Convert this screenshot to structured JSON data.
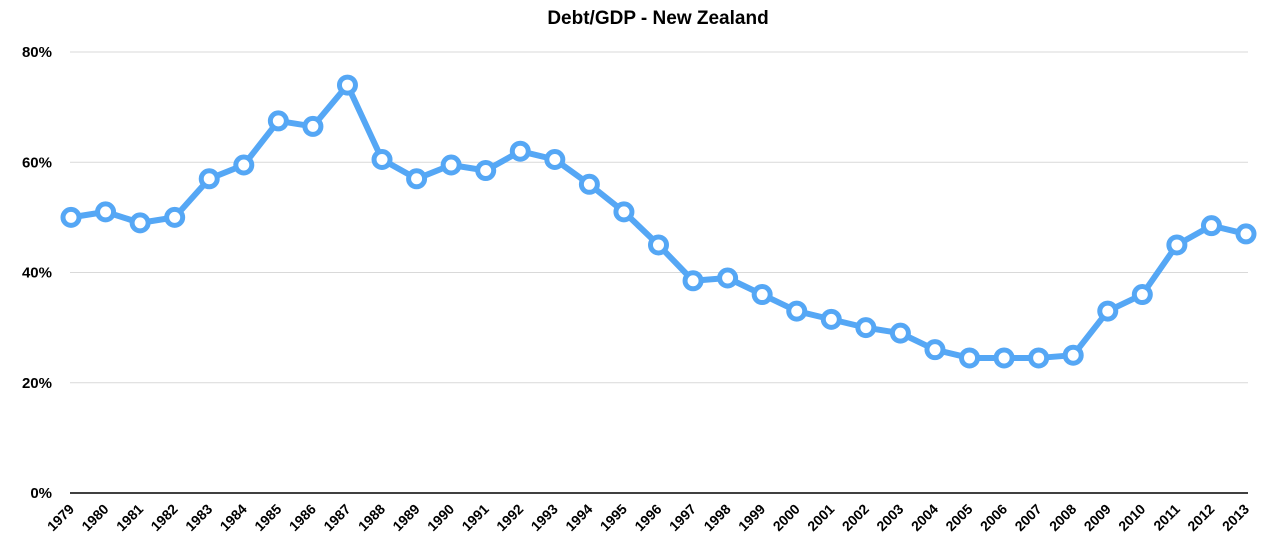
{
  "chart_data": {
    "type": "line",
    "title": "Debt/GDP - New Zealand",
    "xlabel": "",
    "ylabel": "",
    "ylim": [
      0,
      80
    ],
    "y_ticks": [
      "0%",
      "20%",
      "40%",
      "60%",
      "80%"
    ],
    "y_tick_values": [
      0,
      20,
      40,
      60,
      80
    ],
    "grid": true,
    "legend": "none",
    "categories": [
      "1979",
      "1980",
      "1981",
      "1982",
      "1983",
      "1984",
      "1985",
      "1986",
      "1987",
      "1988",
      "1989",
      "1990",
      "1991",
      "1992",
      "1993",
      "1994",
      "1995",
      "1996",
      "1997",
      "1998",
      "1999",
      "2000",
      "2001",
      "2002",
      "2003",
      "2004",
      "2005",
      "2006",
      "2007",
      "2008",
      "2009",
      "2010",
      "2011",
      "2012",
      "2013"
    ],
    "series": [
      {
        "color": "#55a7f5",
        "values": [
          50,
          51,
          49,
          50,
          57,
          59.5,
          67.5,
          66.5,
          74,
          60.5,
          57,
          59.5,
          58.5,
          62,
          60.5,
          56,
          51,
          45,
          38.5,
          39,
          36,
          33,
          31.5,
          30,
          29,
          26,
          24.5,
          24.5,
          24.5,
          25,
          33,
          36,
          45,
          48.5,
          47
        ]
      }
    ]
  }
}
